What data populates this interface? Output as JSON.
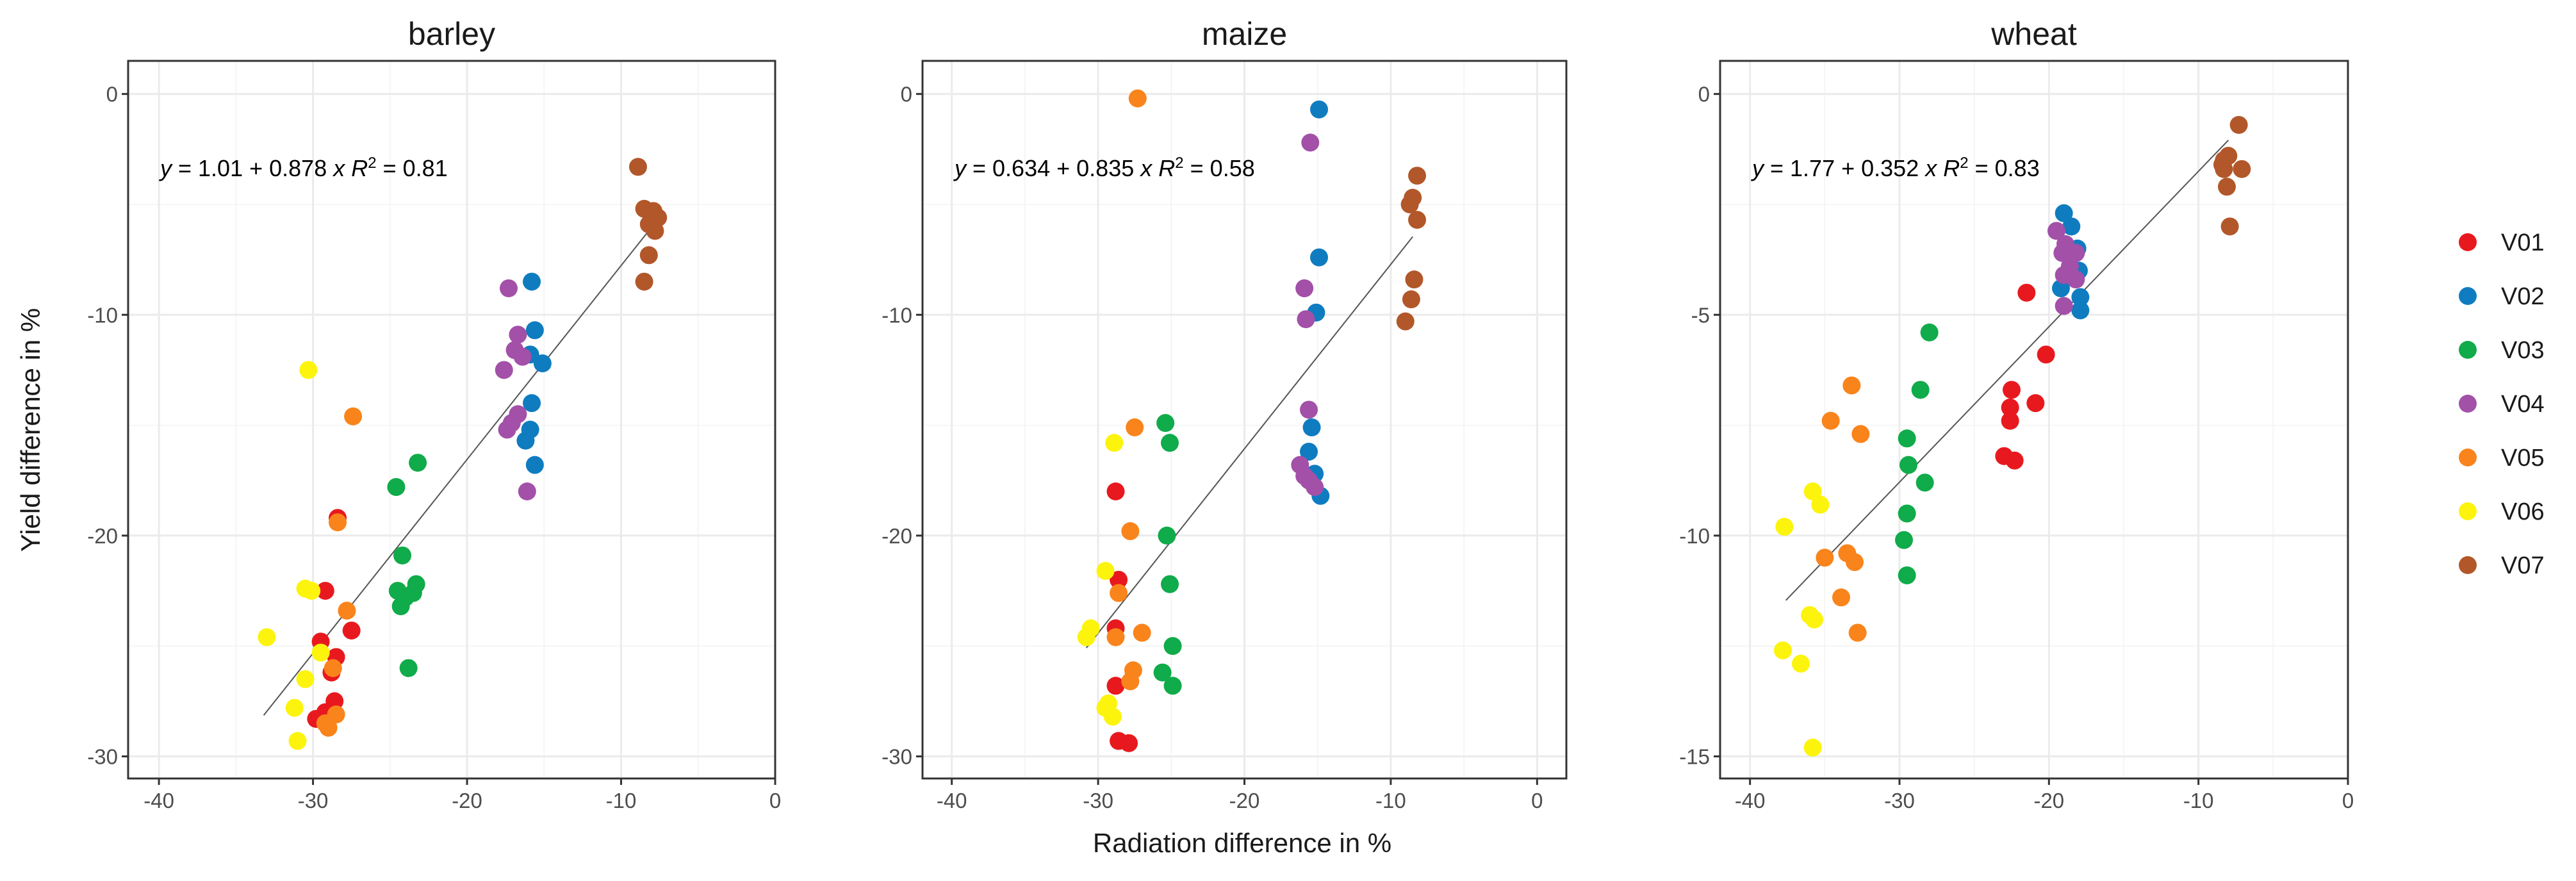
{
  "chart_data": {
    "type": "scatter",
    "xlabel": "Radiation difference in %",
    "ylabel": "Yield difference in %",
    "legend": {
      "placement": "right",
      "items": [
        {
          "name": "V01",
          "color": "#e8191e"
        },
        {
          "name": "V02",
          "color": "#0f7cc0"
        },
        {
          "name": "V03",
          "color": "#10ab4a"
        },
        {
          "name": "V04",
          "color": "#a350a8"
        },
        {
          "name": "V05",
          "color": "#f9841b"
        },
        {
          "name": "V06",
          "color": "#fcf40d"
        },
        {
          "name": "V07",
          "color": "#b2572a"
        }
      ]
    },
    "panels": [
      {
        "title": "barley",
        "xlim": [
          -42,
          0
        ],
        "ylim": [
          -31,
          1.5
        ],
        "xticks": [
          -40,
          -30,
          -20,
          -10,
          0
        ],
        "xtick_labels": [
          "-40",
          "-30",
          "-20",
          "-10",
          "0"
        ],
        "yticks": [
          0,
          -10,
          -20,
          -30
        ],
        "ytick_labels": [
          "0",
          "-10",
          "-20",
          "-30"
        ],
        "equation": {
          "intercept": "1.01",
          "slope": "0.878",
          "r2": "0.81"
        },
        "fit_line": {
          "x": [
            -33.2,
            -7.7
          ]
        },
        "series": [
          {
            "name": "V01",
            "points": [
              [
                -29.2,
                -22.5
              ],
              [
                -27.5,
                -24.3
              ],
              [
                -29.5,
                -24.8
              ],
              [
                -28.5,
                -25.5
              ],
              [
                -28.8,
                -26.2
              ],
              [
                -28.6,
                -27.5
              ],
              [
                -29.2,
                -28.0
              ],
              [
                -29.8,
                -28.3
              ],
              [
                -28.4,
                -19.2
              ]
            ]
          },
          {
            "name": "V02",
            "points": [
              [
                -15.8,
                -8.5
              ],
              [
                -15.6,
                -10.7
              ],
              [
                -15.9,
                -11.8
              ],
              [
                -15.1,
                -12.2
              ],
              [
                -15.8,
                -14.0
              ],
              [
                -15.9,
                -15.2
              ],
              [
                -16.2,
                -15.7
              ],
              [
                -15.6,
                -16.8
              ]
            ]
          },
          {
            "name": "V03",
            "points": [
              [
                -24.6,
                -17.8
              ],
              [
                -23.2,
                -16.7
              ],
              [
                -24.2,
                -20.9
              ],
              [
                -24.5,
                -22.5
              ],
              [
                -24.0,
                -22.8
              ],
              [
                -23.3,
                -22.2
              ],
              [
                -23.5,
                -22.6
              ],
              [
                -24.3,
                -23.2
              ],
              [
                -23.8,
                -26.0
              ]
            ]
          },
          {
            "name": "V04",
            "points": [
              [
                -17.3,
                -8.8
              ],
              [
                -16.7,
                -10.9
              ],
              [
                -16.9,
                -11.6
              ],
              [
                -16.4,
                -11.9
              ],
              [
                -17.6,
                -12.5
              ],
              [
                -16.7,
                -14.5
              ],
              [
                -17.1,
                -14.9
              ],
              [
                -17.4,
                -15.2
              ],
              [
                -16.1,
                -18.0
              ]
            ]
          },
          {
            "name": "V05",
            "points": [
              [
                -27.4,
                -14.6
              ],
              [
                -28.4,
                -19.4
              ],
              [
                -27.8,
                -23.4
              ],
              [
                -28.7,
                -26.0
              ],
              [
                -29.2,
                -28.5
              ],
              [
                -29.0,
                -28.7
              ],
              [
                -28.5,
                -28.1
              ]
            ]
          },
          {
            "name": "V06",
            "points": [
              [
                -30.3,
                -12.5
              ],
              [
                -30.5,
                -22.4
              ],
              [
                -30.1,
                -22.5
              ],
              [
                -33.0,
                -24.6
              ],
              [
                -29.5,
                -25.3
              ],
              [
                -30.5,
                -26.5
              ],
              [
                -31.2,
                -27.8
              ],
              [
                -31.0,
                -29.3
              ]
            ]
          },
          {
            "name": "V07",
            "points": [
              [
                -8.9,
                -3.3
              ],
              [
                -8.5,
                -5.2
              ],
              [
                -7.9,
                -5.3
              ],
              [
                -7.6,
                -5.6
              ],
              [
                -8.2,
                -5.9
              ],
              [
                -7.8,
                -6.2
              ],
              [
                -8.2,
                -7.3
              ],
              [
                -8.5,
                -8.5
              ]
            ]
          }
        ]
      },
      {
        "title": "maize",
        "xlim": [
          -42,
          2
        ],
        "ylim": [
          -31,
          1.5
        ],
        "xticks": [
          -40,
          -30,
          -20,
          -10,
          0
        ],
        "xtick_labels": [
          "-40",
          "-30",
          "-20",
          "-10",
          "0"
        ],
        "yticks": [
          0,
          -10,
          -20,
          -30
        ],
        "ytick_labels": [
          "0",
          "-10",
          "-20",
          "-30"
        ],
        "equation": {
          "intercept": "0.634",
          "slope": "0.835",
          "r2": "0.58"
        },
        "fit_line": {
          "x": [
            -30.8,
            -8.5
          ]
        },
        "series": [
          {
            "name": "V01",
            "points": [
              [
                -28.8,
                -18.0
              ],
              [
                -28.6,
                -22.0
              ],
              [
                -28.8,
                -24.2
              ],
              [
                -28.8,
                -26.8
              ],
              [
                -28.6,
                -29.3
              ],
              [
                -27.9,
                -29.4
              ]
            ]
          },
          {
            "name": "V02",
            "points": [
              [
                -14.9,
                -0.7
              ],
              [
                -14.9,
                -7.4
              ],
              [
                -15.1,
                -9.9
              ],
              [
                -15.4,
                -15.1
              ],
              [
                -15.6,
                -16.2
              ],
              [
                -15.2,
                -17.2
              ],
              [
                -14.8,
                -18.2
              ]
            ]
          },
          {
            "name": "V03",
            "points": [
              [
                -25.4,
                -14.9
              ],
              [
                -25.1,
                -15.8
              ],
              [
                -25.3,
                -20.0
              ],
              [
                -25.1,
                -22.2
              ],
              [
                -24.9,
                -25.0
              ],
              [
                -25.6,
                -26.2
              ],
              [
                -24.9,
                -26.8
              ]
            ]
          },
          {
            "name": "V04",
            "points": [
              [
                -15.5,
                -2.2
              ],
              [
                -15.9,
                -8.8
              ],
              [
                -15.8,
                -10.2
              ],
              [
                -15.6,
                -14.3
              ],
              [
                -16.2,
                -16.8
              ],
              [
                -15.9,
                -17.3
              ],
              [
                -15.6,
                -17.5
              ],
              [
                -15.2,
                -17.8
              ]
            ]
          },
          {
            "name": "V05",
            "points": [
              [
                -27.3,
                -0.2
              ],
              [
                -27.5,
                -15.1
              ],
              [
                -27.8,
                -19.8
              ],
              [
                -28.8,
                -24.6
              ],
              [
                -27.0,
                -24.4
              ],
              [
                -27.6,
                -26.1
              ],
              [
                -27.8,
                -26.6
              ],
              [
                -28.6,
                -22.6
              ]
            ]
          },
          {
            "name": "V06",
            "points": [
              [
                -28.9,
                -15.8
              ],
              [
                -29.5,
                -21.6
              ],
              [
                -30.5,
                -24.2
              ],
              [
                -30.8,
                -24.6
              ],
              [
                -29.5,
                -27.8
              ],
              [
                -29.0,
                -28.2
              ],
              [
                -29.3,
                -27.6
              ]
            ]
          },
          {
            "name": "V07",
            "points": [
              [
                -8.2,
                -3.7
              ],
              [
                -8.5,
                -4.7
              ],
              [
                -8.7,
                -5.0
              ],
              [
                -8.2,
                -5.7
              ],
              [
                -8.4,
                -8.4
              ],
              [
                -8.6,
                -9.3
              ],
              [
                -9.0,
                -10.3
              ]
            ]
          }
        ]
      },
      {
        "title": "wheat",
        "xlim": [
          -42,
          0
        ],
        "ylim": [
          -15.5,
          0.75
        ],
        "xticks": [
          -40,
          -30,
          -20,
          -10,
          0
        ],
        "xtick_labels": [
          "-40",
          "-30",
          "-20",
          "-10",
          "0"
        ],
        "yticks": [
          0,
          -5,
          -10,
          -15
        ],
        "ytick_labels": [
          "0",
          "-5",
          "-10",
          "-15"
        ],
        "equation": {
          "intercept": "1.77",
          "slope": "0.352",
          "r2": "0.83"
        },
        "fit_line": {
          "x": [
            -37.6,
            -8.0
          ]
        },
        "series": [
          {
            "name": "V01",
            "points": [
              [
                -21.5,
                -4.5
              ],
              [
                -22.5,
                -6.7
              ],
              [
                -20.2,
                -5.9
              ],
              [
                -20.9,
                -7.0
              ],
              [
                -22.6,
                -7.1
              ],
              [
                -22.6,
                -7.4
              ],
              [
                -23.0,
                -8.2
              ],
              [
                -22.3,
                -8.3
              ]
            ]
          },
          {
            "name": "V02",
            "points": [
              [
                -19.0,
                -2.7
              ],
              [
                -18.5,
                -3.0
              ],
              [
                -18.1,
                -3.5
              ],
              [
                -18.0,
                -4.0
              ],
              [
                -19.2,
                -4.4
              ],
              [
                -17.9,
                -4.6
              ],
              [
                -17.9,
                -4.9
              ]
            ]
          },
          {
            "name": "V03",
            "points": [
              [
                -28.0,
                -5.4
              ],
              [
                -28.6,
                -6.7
              ],
              [
                -29.5,
                -7.8
              ],
              [
                -29.4,
                -8.4
              ],
              [
                -28.3,
                -8.8
              ],
              [
                -29.5,
                -9.5
              ],
              [
                -29.7,
                -10.1
              ],
              [
                -29.5,
                -10.9
              ]
            ]
          },
          {
            "name": "V04",
            "points": [
              [
                -19.5,
                -3.1
              ],
              [
                -18.9,
                -3.4
              ],
              [
                -18.2,
                -3.6
              ],
              [
                -19.1,
                -3.6
              ],
              [
                -18.6,
                -3.9
              ],
              [
                -19.0,
                -4.1
              ],
              [
                -18.2,
                -4.2
              ],
              [
                -19.0,
                -4.8
              ]
            ]
          },
          {
            "name": "V05",
            "points": [
              [
                -33.2,
                -6.6
              ],
              [
                -34.6,
                -7.4
              ],
              [
                -32.6,
                -7.7
              ],
              [
                -35.0,
                -10.5
              ],
              [
                -33.5,
                -10.4
              ],
              [
                -33.0,
                -10.6
              ],
              [
                -33.9,
                -11.4
              ],
              [
                -32.8,
                -12.2
              ]
            ]
          },
          {
            "name": "V06",
            "points": [
              [
                -37.7,
                -9.8
              ],
              [
                -35.8,
                -9.0
              ],
              [
                -35.3,
                -9.3
              ],
              [
                -36.0,
                -11.8
              ],
              [
                -35.7,
                -11.9
              ],
              [
                -36.6,
                -12.9
              ],
              [
                -37.8,
                -12.6
              ],
              [
                -35.8,
                -14.8
              ]
            ]
          },
          {
            "name": "V07",
            "points": [
              [
                -7.3,
                -0.7
              ],
              [
                -8.0,
                -1.4
              ],
              [
                -8.3,
                -1.5
              ],
              [
                -8.4,
                -1.6
              ],
              [
                -8.3,
                -1.7
              ],
              [
                -7.1,
                -1.7
              ],
              [
                -8.1,
                -2.1
              ],
              [
                -7.9,
                -3.0
              ]
            ]
          }
        ]
      }
    ]
  }
}
